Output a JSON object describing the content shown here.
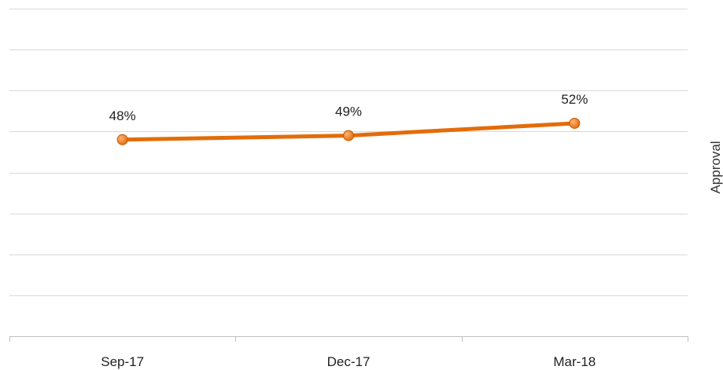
{
  "chart_data": {
    "type": "line",
    "categories": [
      "Sep-17",
      "Dec-17",
      "Mar-18"
    ],
    "series": [
      {
        "name": "Approval",
        "values": [
          48,
          49,
          52
        ],
        "data_labels": [
          "48%",
          "49%",
          "52%"
        ],
        "color": "#E36C09"
      }
    ],
    "ylim": [
      0,
      80
    ],
    "grid": true,
    "legend_position": "right"
  }
}
